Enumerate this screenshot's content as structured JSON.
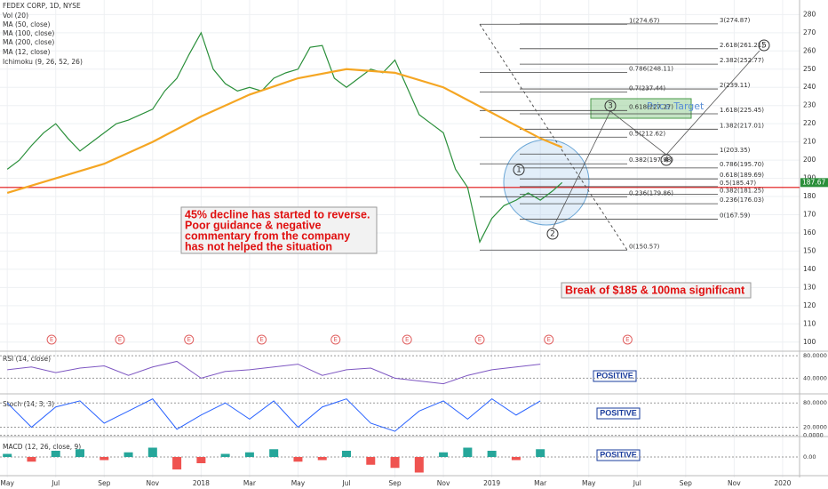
{
  "chart_data": {
    "type": "line",
    "series": [
      {
        "name": "FEDEX CORP, 1D, NYSE",
        "color": "#2a8f3a",
        "x": [
          0,
          0.5,
          1,
          1.5,
          2,
          2.5,
          3,
          3.5,
          4,
          4.5,
          5,
          5.5,
          6,
          6.5,
          7,
          7.5,
          8,
          8.5,
          9,
          9.5,
          10,
          10.5,
          11,
          11.5,
          12,
          12.5,
          13,
          13.5,
          14,
          14.5,
          15,
          15.5,
          16,
          16.5,
          17,
          17.5,
          18,
          18.5,
          19,
          19.5,
          20,
          20.5,
          21,
          21.5,
          22,
          22.5,
          22.9
        ],
        "values": [
          195,
          200,
          208,
          215,
          220,
          212,
          205,
          210,
          215,
          220,
          222,
          225,
          228,
          238,
          245,
          258,
          270,
          250,
          242,
          238,
          240,
          238,
          245,
          248,
          250,
          262,
          263,
          245,
          240,
          245,
          250,
          248,
          255,
          240,
          225,
          220,
          215,
          195,
          185,
          155,
          168,
          175,
          178,
          182,
          178,
          183,
          187.67
        ]
      },
      {
        "name": "MA (200, close)",
        "color": "#f5a623",
        "x": [
          0,
          2,
          4,
          6,
          8,
          10,
          12,
          14,
          16,
          18,
          20,
          22,
          22.9
        ],
        "values": [
          182,
          190,
          198,
          210,
          224,
          236,
          245,
          250,
          248,
          240,
          226,
          212,
          207
        ]
      }
    ],
    "legend_lines": [
      "Vol (20)",
      "MA (50, close)",
      "MA (100, close)",
      "MA (12, close)",
      "Ichimoku (9, 26, 52, 26)"
    ],
    "xlim": [
      -0.3,
      32.7
    ],
    "xticks": [
      {
        "value": 0,
        "label": "May"
      },
      {
        "value": 2,
        "label": "Jul"
      },
      {
        "value": 4,
        "label": "Sep"
      },
      {
        "value": 6,
        "label": "Nov"
      },
      {
        "value": 8,
        "label": "2018"
      },
      {
        "value": 10,
        "label": "Mar"
      },
      {
        "value": 12,
        "label": "May"
      },
      {
        "value": 14,
        "label": "Jul"
      },
      {
        "value": 16,
        "label": "Sep"
      },
      {
        "value": 18,
        "label": "Nov"
      },
      {
        "value": 20,
        "label": "2019"
      },
      {
        "value": 22,
        "label": "Mar"
      },
      {
        "value": 24,
        "label": "May"
      },
      {
        "value": 26,
        "label": "Jul"
      },
      {
        "value": 28,
        "label": "Sep"
      },
      {
        "value": 30,
        "label": "Nov"
      },
      {
        "value": 32,
        "label": "2020"
      }
    ],
    "ylim": [
      95,
      288
    ],
    "yticks": [
      100,
      110,
      120,
      130,
      140,
      150,
      160,
      170,
      180,
      190,
      200,
      210,
      220,
      230,
      240,
      250,
      260,
      270,
      280
    ],
    "last_price": {
      "value": 187.67,
      "label": "187.67"
    },
    "level_line": 185,
    "fib_retracement": [
      {
        "label": "1(274.67)",
        "value": 274.67
      },
      {
        "label": "0.786(248.11)",
        "value": 248.11
      },
      {
        "label": "0.7(237.44)",
        "value": 237.44
      },
      {
        "label": "0.618(227.27)",
        "value": 227.27
      },
      {
        "label": "0.5(212.62)",
        "value": 212.62
      },
      {
        "label": "0.382(197.98)",
        "value": 197.98
      },
      {
        "label": "0.236(179.86)",
        "value": 179.86
      },
      {
        "label": "0(150.57)",
        "value": 150.57
      }
    ],
    "fib_extension": [
      {
        "label": "3(274.87)",
        "value": 274.87
      },
      {
        "label": "2.618(261.21)",
        "value": 261.21
      },
      {
        "label": "2.382(252.77)",
        "value": 252.77
      },
      {
        "label": "2(239.11)",
        "value": 239.11
      },
      {
        "label": "1.618(225.45)",
        "value": 225.45
      },
      {
        "label": "1.382(217.01)",
        "value": 217.01
      },
      {
        "label": "1(203.35)",
        "value": 203.35
      },
      {
        "label": "0.786(195.70)",
        "value": 195.7
      },
      {
        "label": "0.618(189.69)",
        "value": 189.69
      },
      {
        "label": "0.5(185.47)",
        "value": 185.47
      },
      {
        "label": "0.382(181.25)",
        "value": 181.25
      },
      {
        "label": "0.236(176.03)",
        "value": 176.03
      },
      {
        "label": "0(167.59)",
        "value": 167.59
      }
    ],
    "earnings": {
      "label": "E",
      "x": [
        1.83,
        4.65,
        7.5,
        10.5,
        13.55,
        16.5,
        19.5,
        22.35,
        25.6
      ]
    },
    "annotations": {
      "decline": [
        "45% decline has started to reverse.",
        "Poor guidance & negative",
        "commentary from the company",
        "has not helped the situation"
      ],
      "break": "Break of $185 & 100ma significant",
      "target": "Price Target",
      "waves": [
        "1",
        "2",
        "3",
        "4",
        "5"
      ]
    },
    "rsi": {
      "name": "RSI (14, close)",
      "status": "POSITIVE",
      "ylim": [
        12,
        85
      ],
      "yticks": [
        {
          "value": 80,
          "label": "80.0000"
        },
        {
          "value": 40,
          "label": "40.0000"
        }
      ],
      "values": [
        55,
        60,
        50,
        58,
        62,
        45,
        60,
        70,
        40,
        52,
        55,
        60,
        65,
        45,
        55,
        58,
        40,
        35,
        30,
        45,
        55,
        60,
        65
      ]
    },
    "stoch": {
      "name": "Stoch (14, 3, 3)",
      "status": "POSITIVE",
      "ylim": [
        -3,
        98
      ],
      "yticks": [
        {
          "value": 80,
          "label": "80.0000"
        },
        {
          "value": 20,
          "label": "20.0000"
        },
        {
          "value": 0,
          "label": "0.0000"
        }
      ],
      "values": [
        80,
        20,
        70,
        85,
        30,
        60,
        90,
        15,
        50,
        80,
        40,
        85,
        20,
        70,
        90,
        30,
        10,
        60,
        85,
        40,
        90,
        50,
        85
      ]
    },
    "macd": {
      "name": "MACD (12, 26, close, 9)",
      "status": "POSITIVE",
      "ylim": [
        -12,
        12
      ],
      "yticks": [
        {
          "value": 0,
          "label": "0.00"
        }
      ],
      "values": [
        2,
        -3,
        4,
        5,
        -2,
        3,
        6,
        -8,
        -4,
        2,
        3,
        5,
        -3,
        -2,
        4,
        -5,
        -7,
        -10,
        3,
        6,
        4,
        -2,
        5
      ]
    }
  }
}
